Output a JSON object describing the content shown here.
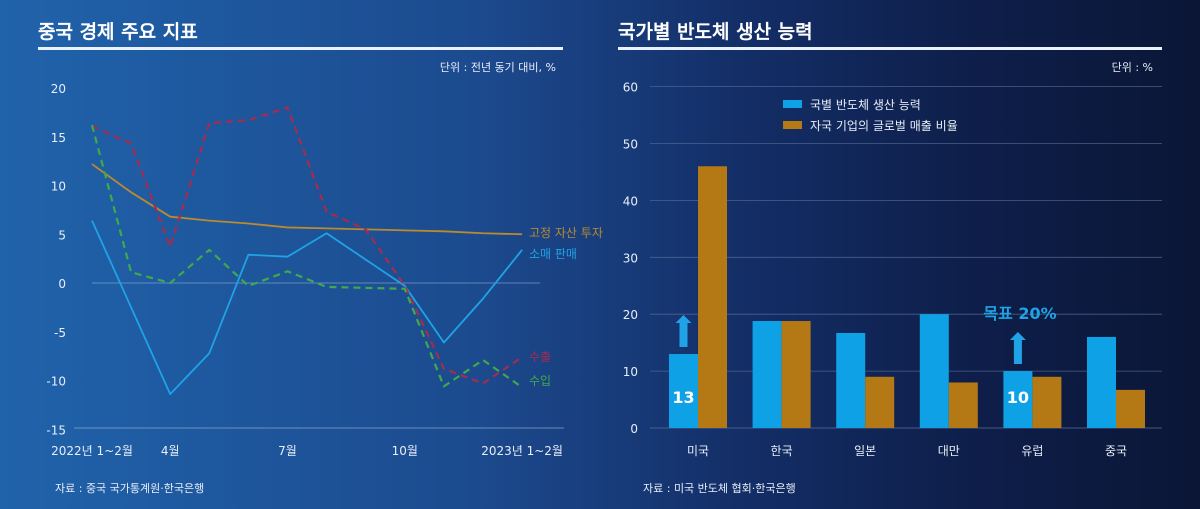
{
  "chart_data": [
    {
      "type": "line",
      "title": "중국 경제 주요 지표",
      "unit_note": "단위 : 전년 동기 대비, %",
      "source": "자료 : 중국 국가통계원·한국은행",
      "ylim": [
        -15,
        20
      ],
      "yticks": [
        "20",
        "15",
        "10",
        "5",
        "0",
        "-5",
        "-10",
        "-15"
      ],
      "ytick_values": [
        20,
        15,
        10,
        5,
        0,
        -5,
        -10,
        -15
      ],
      "xtick_labels": [
        {
          "index": 0,
          "label": "2022년 1~2월"
        },
        {
          "index": 2,
          "label": "4월"
        },
        {
          "index": 5,
          "label": "7월"
        },
        {
          "index": 8,
          "label": "10월"
        },
        {
          "index": 11,
          "label": "2023년 1~2월"
        }
      ],
      "x": [
        "2022-01~02",
        "2022-03",
        "2022-04",
        "2022-05",
        "2022-06",
        "2022-07",
        "2022-08",
        "2022-09",
        "2022-10",
        "2022-11",
        "2022-12",
        "2023-01~02"
      ],
      "series": [
        {
          "name": "고정 자산 투자",
          "color": "#b98a2e",
          "style": "solid",
          "values": [
            12.2,
            9.3,
            6.8,
            6.4,
            6.1,
            5.7,
            5.6,
            5.5,
            5.4,
            5.3,
            5.1,
            5.0
          ]
        },
        {
          "name": "소매 판매",
          "color": "#1fa3e6",
          "style": "solid",
          "values": [
            6.4,
            -2.5,
            -11.4,
            -7.2,
            2.9,
            2.7,
            5.1,
            2.4,
            -0.3,
            -6.1,
            -1.6,
            3.4
          ]
        },
        {
          "name": "수출",
          "color": "#a52b4f",
          "style": "dashed",
          "values": [
            16.1,
            14.3,
            3.7,
            16.4,
            16.7,
            18.0,
            7.3,
            5.5,
            -0.3,
            -8.8,
            -10.3,
            -7.6
          ]
        },
        {
          "name": "수입",
          "color": "#3faa4a",
          "style": "dashed",
          "values": [
            16.2,
            1.1,
            0.0,
            3.4,
            -0.3,
            1.2,
            -0.4,
            -0.5,
            -0.6,
            -10.6,
            -7.9,
            -10.7
          ]
        }
      ],
      "grid": false,
      "legend": "inline labels at right end"
    },
    {
      "type": "bar",
      "title": "국가별 반도체 생산 능력",
      "unit_note": "단위 : %",
      "source": "자료 : 미국 반도체 협회·한국은행",
      "ylim": [
        0,
        60
      ],
      "yticks": [
        "60",
        "50",
        "40",
        "30",
        "20",
        "10",
        "0"
      ],
      "ytick_values": [
        60,
        50,
        40,
        30,
        20,
        10,
        0
      ],
      "categories": [
        "미국",
        "한국",
        "일본",
        "대만",
        "유럽",
        "중국"
      ],
      "series": [
        {
          "name": "국별 반도체 생산 능력",
          "color": "#0fa1e6",
          "values": [
            13,
            18.8,
            16.7,
            20,
            10,
            16
          ]
        },
        {
          "name": "자국 기업의 글로벌 매출 비율",
          "color": "#b47814",
          "values": [
            46,
            18.8,
            9,
            8,
            9,
            6.7
          ]
        }
      ],
      "data_labels": [
        {
          "category": "미국",
          "text": "13"
        },
        {
          "category": "유럽",
          "text": "10"
        }
      ],
      "annotation": {
        "text": "목표 20%",
        "color": "#1fa3e6"
      },
      "grid": true,
      "legend": "top-center"
    }
  ]
}
